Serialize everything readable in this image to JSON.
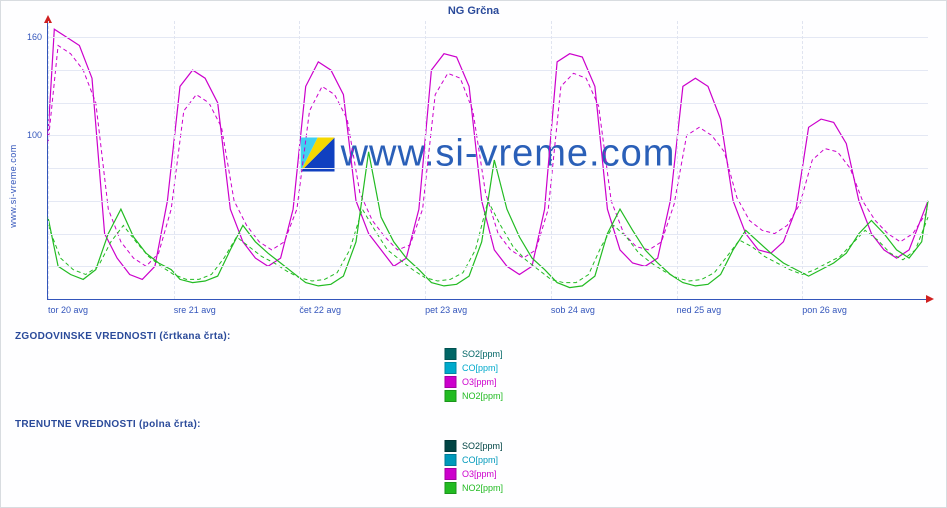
{
  "title": "NG Grčna",
  "ylabel": "www.si-vreme.com",
  "watermark_text": "www.si-vreme.com",
  "background_color": "#fefeff",
  "border_color": "#d8dce0",
  "axis_color": "#3355bb",
  "grid_color": "#e4e8f4",
  "arrow_color": "#d02020",
  "title_color": "#2a4a9a",
  "watermark_color": "#2a5fb8",
  "section1_label": "ZGODOVINSKE VREDNOSTI (črtkana črta):",
  "section2_label": "TRENUTNE VREDNOSTI (polna črta):",
  "legend1": [
    {
      "label": "SO2[ppm]",
      "color": "#006666"
    },
    {
      "label": "CO[ppm]",
      "color": "#00aacc"
    },
    {
      "label": "O3[ppm]",
      "color": "#cc00cc"
    },
    {
      "label": "NO2[ppm]",
      "color": "#22bb22"
    }
  ],
  "legend2": [
    {
      "label": "SO2[ppm]",
      "color": "#004444"
    },
    {
      "label": "CO[ppm]",
      "color": "#0099bb"
    },
    {
      "label": "O3[ppm]",
      "color": "#cc00cc"
    },
    {
      "label": "NO2[ppm]",
      "color": "#22bb22"
    }
  ],
  "chart": {
    "type": "line",
    "ylim": [
      0,
      170
    ],
    "yticks": [
      100,
      160
    ],
    "ytick_fontsize": 9,
    "xlim": [
      0,
      7
    ],
    "xticks": [
      {
        "pos": 0.0,
        "label": "tor 20 avg"
      },
      {
        "pos": 1.0,
        "label": "sre 21 avg"
      },
      {
        "pos": 2.0,
        "label": "čet 22 avg"
      },
      {
        "pos": 3.0,
        "label": "pet 23 avg"
      },
      {
        "pos": 4.0,
        "label": "sob 24 avg"
      },
      {
        "pos": 5.0,
        "label": "ned 25 avg"
      },
      {
        "pos": 6.0,
        "label": "pon 26 avg"
      }
    ],
    "xtick_fontsize": 9,
    "line_width_solid": 1.2,
    "line_width_dashed": 1.0,
    "dash_pattern": "4 3",
    "series": [
      {
        "name": "O3_current",
        "color": "#cc00cc",
        "style": "solid",
        "points": [
          [
            0,
            100
          ],
          [
            0.05,
            165
          ],
          [
            0.15,
            160
          ],
          [
            0.25,
            155
          ],
          [
            0.35,
            135
          ],
          [
            0.45,
            40
          ],
          [
            0.55,
            25
          ],
          [
            0.65,
            15
          ],
          [
            0.75,
            12
          ],
          [
            0.85,
            20
          ],
          [
            0.95,
            60
          ],
          [
            1.05,
            130
          ],
          [
            1.15,
            140
          ],
          [
            1.25,
            135
          ],
          [
            1.35,
            120
          ],
          [
            1.45,
            55
          ],
          [
            1.55,
            35
          ],
          [
            1.65,
            25
          ],
          [
            1.75,
            20
          ],
          [
            1.85,
            25
          ],
          [
            1.95,
            55
          ],
          [
            2.05,
            130
          ],
          [
            2.15,
            145
          ],
          [
            2.25,
            140
          ],
          [
            2.35,
            125
          ],
          [
            2.45,
            60
          ],
          [
            2.55,
            40
          ],
          [
            2.65,
            30
          ],
          [
            2.75,
            20
          ],
          [
            2.85,
            25
          ],
          [
            2.95,
            55
          ],
          [
            3.05,
            140
          ],
          [
            3.15,
            150
          ],
          [
            3.25,
            148
          ],
          [
            3.35,
            130
          ],
          [
            3.45,
            60
          ],
          [
            3.55,
            30
          ],
          [
            3.65,
            20
          ],
          [
            3.75,
            15
          ],
          [
            3.85,
            20
          ],
          [
            3.95,
            55
          ],
          [
            4.05,
            145
          ],
          [
            4.15,
            150
          ],
          [
            4.25,
            148
          ],
          [
            4.35,
            130
          ],
          [
            4.45,
            55
          ],
          [
            4.55,
            30
          ],
          [
            4.65,
            22
          ],
          [
            4.75,
            20
          ],
          [
            4.85,
            25
          ],
          [
            4.95,
            60
          ],
          [
            5.05,
            130
          ],
          [
            5.15,
            135
          ],
          [
            5.25,
            130
          ],
          [
            5.35,
            110
          ],
          [
            5.45,
            60
          ],
          [
            5.55,
            40
          ],
          [
            5.65,
            30
          ],
          [
            5.75,
            28
          ],
          [
            5.85,
            35
          ],
          [
            5.95,
            55
          ],
          [
            6.05,
            105
          ],
          [
            6.15,
            110
          ],
          [
            6.25,
            108
          ],
          [
            6.35,
            95
          ],
          [
            6.45,
            60
          ],
          [
            6.55,
            40
          ],
          [
            6.65,
            30
          ],
          [
            6.75,
            25
          ],
          [
            6.85,
            30
          ],
          [
            6.95,
            50
          ],
          [
            7.0,
            60
          ]
        ]
      },
      {
        "name": "O3_hist",
        "color": "#cc00cc",
        "style": "dashed",
        "points": [
          [
            0,
            95
          ],
          [
            0.08,
            155
          ],
          [
            0.18,
            150
          ],
          [
            0.28,
            140
          ],
          [
            0.38,
            120
          ],
          [
            0.48,
            55
          ],
          [
            0.58,
            35
          ],
          [
            0.68,
            25
          ],
          [
            0.78,
            20
          ],
          [
            0.88,
            28
          ],
          [
            0.98,
            55
          ],
          [
            1.08,
            115
          ],
          [
            1.18,
            125
          ],
          [
            1.28,
            120
          ],
          [
            1.38,
            105
          ],
          [
            1.48,
            60
          ],
          [
            1.58,
            45
          ],
          [
            1.68,
            35
          ],
          [
            1.78,
            30
          ],
          [
            1.88,
            35
          ],
          [
            1.98,
            55
          ],
          [
            2.08,
            115
          ],
          [
            2.18,
            130
          ],
          [
            2.28,
            125
          ],
          [
            2.38,
            110
          ],
          [
            2.48,
            65
          ],
          [
            2.58,
            48
          ],
          [
            2.68,
            38
          ],
          [
            2.78,
            30
          ],
          [
            2.88,
            33
          ],
          [
            2.98,
            55
          ],
          [
            3.08,
            125
          ],
          [
            3.18,
            138
          ],
          [
            3.28,
            135
          ],
          [
            3.38,
            115
          ],
          [
            3.48,
            65
          ],
          [
            3.58,
            40
          ],
          [
            3.68,
            30
          ],
          [
            3.78,
            25
          ],
          [
            3.88,
            30
          ],
          [
            3.98,
            55
          ],
          [
            4.08,
            130
          ],
          [
            4.18,
            138
          ],
          [
            4.28,
            135
          ],
          [
            4.38,
            118
          ],
          [
            4.48,
            60
          ],
          [
            4.58,
            40
          ],
          [
            4.68,
            32
          ],
          [
            4.78,
            30
          ],
          [
            4.88,
            35
          ],
          [
            4.98,
            58
          ],
          [
            5.08,
            100
          ],
          [
            5.18,
            105
          ],
          [
            5.28,
            100
          ],
          [
            5.38,
            90
          ],
          [
            5.48,
            62
          ],
          [
            5.58,
            48
          ],
          [
            5.68,
            42
          ],
          [
            5.78,
            40
          ],
          [
            5.88,
            45
          ],
          [
            5.98,
            58
          ],
          [
            6.08,
            85
          ],
          [
            6.18,
            92
          ],
          [
            6.28,
            90
          ],
          [
            6.38,
            80
          ],
          [
            6.48,
            60
          ],
          [
            6.58,
            48
          ],
          [
            6.68,
            40
          ],
          [
            6.78,
            35
          ],
          [
            6.88,
            40
          ],
          [
            6.98,
            52
          ],
          [
            7.0,
            55
          ]
        ]
      },
      {
        "name": "NO2_current",
        "color": "#22bb22",
        "style": "solid",
        "points": [
          [
            0,
            50
          ],
          [
            0.08,
            20
          ],
          [
            0.18,
            15
          ],
          [
            0.28,
            12
          ],
          [
            0.38,
            18
          ],
          [
            0.48,
            40
          ],
          [
            0.58,
            55
          ],
          [
            0.68,
            38
          ],
          [
            0.78,
            28
          ],
          [
            0.88,
            22
          ],
          [
            0.98,
            18
          ],
          [
            1.05,
            12
          ],
          [
            1.15,
            10
          ],
          [
            1.25,
            11
          ],
          [
            1.35,
            14
          ],
          [
            1.45,
            30
          ],
          [
            1.55,
            45
          ],
          [
            1.65,
            35
          ],
          [
            1.75,
            28
          ],
          [
            1.85,
            22
          ],
          [
            1.95,
            16
          ],
          [
            2.05,
            10
          ],
          [
            2.15,
            8
          ],
          [
            2.25,
            9
          ],
          [
            2.35,
            14
          ],
          [
            2.45,
            35
          ],
          [
            2.55,
            90
          ],
          [
            2.65,
            50
          ],
          [
            2.75,
            35
          ],
          [
            2.85,
            25
          ],
          [
            2.95,
            18
          ],
          [
            3.05,
            10
          ],
          [
            3.15,
            8
          ],
          [
            3.25,
            9
          ],
          [
            3.35,
            14
          ],
          [
            3.45,
            35
          ],
          [
            3.55,
            85
          ],
          [
            3.65,
            55
          ],
          [
            3.75,
            38
          ],
          [
            3.85,
            25
          ],
          [
            3.95,
            18
          ],
          [
            4.05,
            10
          ],
          [
            4.15,
            7
          ],
          [
            4.25,
            8
          ],
          [
            4.35,
            14
          ],
          [
            4.45,
            40
          ],
          [
            4.55,
            55
          ],
          [
            4.65,
            42
          ],
          [
            4.75,
            30
          ],
          [
            4.85,
            22
          ],
          [
            4.95,
            15
          ],
          [
            5.05,
            10
          ],
          [
            5.15,
            8
          ],
          [
            5.25,
            9
          ],
          [
            5.35,
            15
          ],
          [
            5.45,
            30
          ],
          [
            5.55,
            42
          ],
          [
            5.65,
            35
          ],
          [
            5.75,
            28
          ],
          [
            5.85,
            22
          ],
          [
            5.95,
            18
          ],
          [
            6.05,
            14
          ],
          [
            6.15,
            18
          ],
          [
            6.25,
            22
          ],
          [
            6.35,
            28
          ],
          [
            6.45,
            40
          ],
          [
            6.55,
            48
          ],
          [
            6.65,
            40
          ],
          [
            6.75,
            30
          ],
          [
            6.85,
            25
          ],
          [
            6.95,
            35
          ],
          [
            7.0,
            60
          ]
        ]
      },
      {
        "name": "NO2_hist",
        "color": "#22bb22",
        "style": "dashed",
        "points": [
          [
            0,
            45
          ],
          [
            0.1,
            25
          ],
          [
            0.2,
            18
          ],
          [
            0.3,
            15
          ],
          [
            0.4,
            20
          ],
          [
            0.5,
            35
          ],
          [
            0.6,
            45
          ],
          [
            0.7,
            35
          ],
          [
            0.8,
            26
          ],
          [
            0.9,
            20
          ],
          [
            1.0,
            15
          ],
          [
            1.1,
            12
          ],
          [
            1.2,
            12
          ],
          [
            1.3,
            15
          ],
          [
            1.4,
            25
          ],
          [
            1.5,
            38
          ],
          [
            1.6,
            32
          ],
          [
            1.7,
            26
          ],
          [
            1.8,
            22
          ],
          [
            1.9,
            17
          ],
          [
            2.0,
            13
          ],
          [
            2.1,
            11
          ],
          [
            2.2,
            12
          ],
          [
            2.3,
            16
          ],
          [
            2.4,
            30
          ],
          [
            2.5,
            55
          ],
          [
            2.6,
            42
          ],
          [
            2.7,
            30
          ],
          [
            2.8,
            24
          ],
          [
            2.9,
            18
          ],
          [
            3.0,
            13
          ],
          [
            3.1,
            11
          ],
          [
            3.2,
            12
          ],
          [
            3.3,
            16
          ],
          [
            3.4,
            30
          ],
          [
            3.5,
            60
          ],
          [
            3.6,
            45
          ],
          [
            3.7,
            32
          ],
          [
            3.8,
            24
          ],
          [
            3.9,
            18
          ],
          [
            4.0,
            12
          ],
          [
            4.1,
            10
          ],
          [
            4.2,
            10
          ],
          [
            4.3,
            15
          ],
          [
            4.4,
            32
          ],
          [
            4.5,
            45
          ],
          [
            4.6,
            38
          ],
          [
            4.7,
            28
          ],
          [
            4.8,
            22
          ],
          [
            4.9,
            17
          ],
          [
            5.0,
            13
          ],
          [
            5.1,
            11
          ],
          [
            5.2,
            12
          ],
          [
            5.3,
            16
          ],
          [
            5.4,
            26
          ],
          [
            5.5,
            36
          ],
          [
            5.6,
            32
          ],
          [
            5.7,
            26
          ],
          [
            5.8,
            22
          ],
          [
            5.9,
            18
          ],
          [
            6.0,
            15
          ],
          [
            6.1,
            18
          ],
          [
            6.2,
            22
          ],
          [
            6.3,
            26
          ],
          [
            6.4,
            34
          ],
          [
            6.5,
            42
          ],
          [
            6.6,
            36
          ],
          [
            6.7,
            28
          ],
          [
            6.8,
            24
          ],
          [
            6.9,
            30
          ],
          [
            7.0,
            50
          ]
        ]
      }
    ]
  }
}
